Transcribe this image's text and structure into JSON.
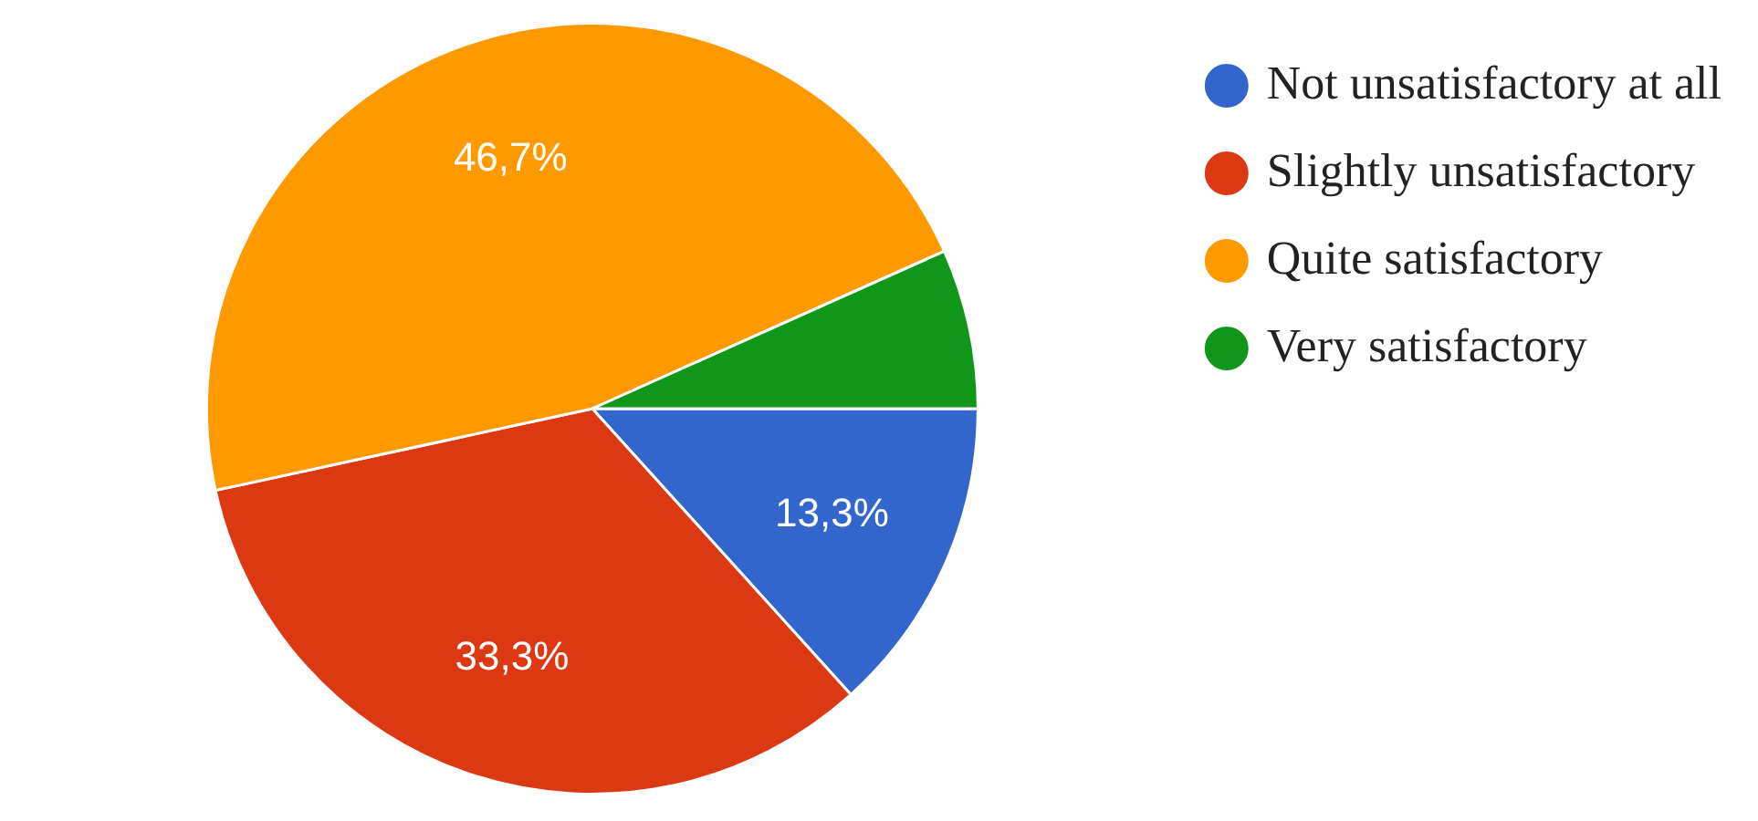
{
  "chart_data": {
    "type": "pie",
    "categories": [
      "Not unsatisfactory at all",
      "Slightly unsatisfactory",
      "Quite satisfactory",
      "Very satisfactory"
    ],
    "values": [
      13.3,
      33.3,
      46.7,
      6.7
    ],
    "colors": [
      "#3366cc",
      "#dc3912",
      "#ff9900",
      "#109618"
    ],
    "value_labels": [
      "13,3%",
      "33,3%",
      "46,7%",
      null
    ],
    "legend": "top right"
  }
}
